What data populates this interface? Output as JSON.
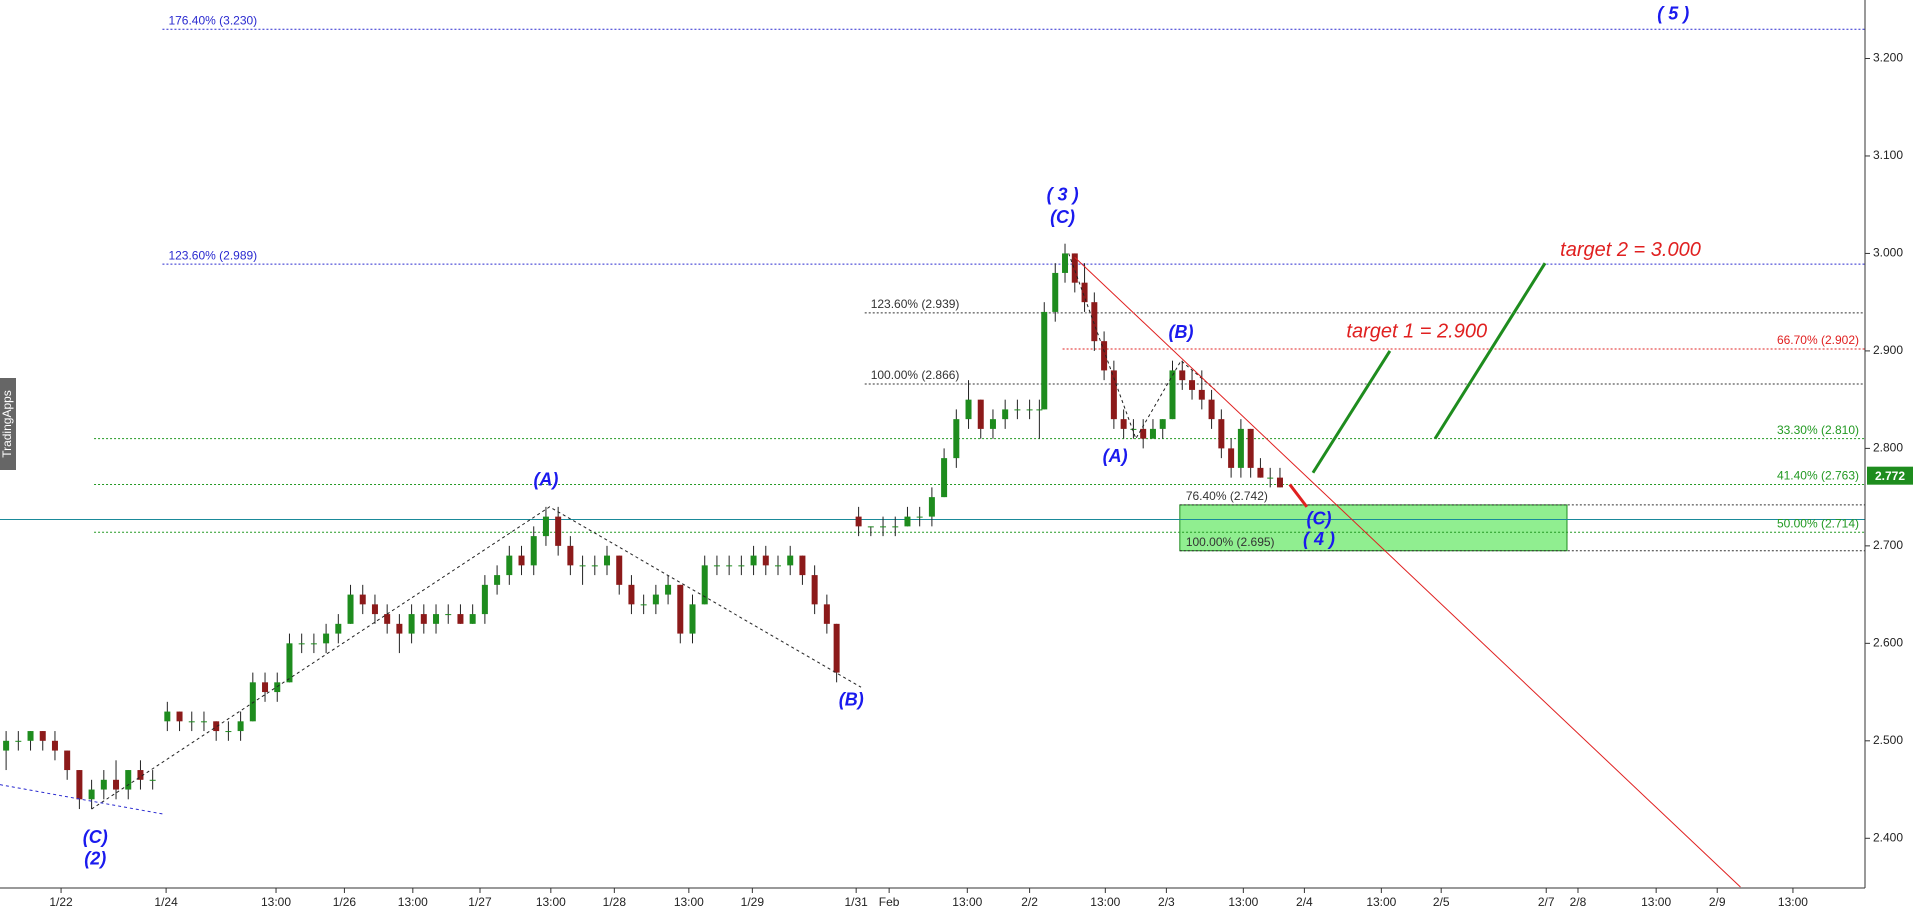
{
  "chart_data": {
    "type": "candlestick",
    "xlim": [
      0,
      152.7
    ],
    "ylim": [
      2.349,
      3.26
    ],
    "yticks": [
      {
        "value": 2.4,
        "label": "2.400"
      },
      {
        "value": 2.5,
        "label": "2.500"
      },
      {
        "value": 2.6,
        "label": "2.600"
      },
      {
        "value": 2.7,
        "label": "2.700"
      },
      {
        "value": 2.8,
        "label": "2.800"
      },
      {
        "value": 2.9,
        "label": "2.900"
      },
      {
        "value": 3.0,
        "label": "3.000"
      },
      {
        "value": 3.1,
        "label": "3.100"
      },
      {
        "value": 3.2,
        "label": "3.200"
      }
    ],
    "xticks": [
      {
        "value": 5.0,
        "label": "1/22"
      },
      {
        "value": 13.6,
        "label": "1/24"
      },
      {
        "value": 22.6,
        "label": "13:00"
      },
      {
        "value": 28.2,
        "label": "1/26"
      },
      {
        "value": 33.8,
        "label": "13:00"
      },
      {
        "value": 39.3,
        "label": "1/27"
      },
      {
        "value": 45.1,
        "label": "13:00"
      },
      {
        "value": 50.3,
        "label": "1/28"
      },
      {
        "value": 56.4,
        "label": "13:00"
      },
      {
        "value": 61.6,
        "label": "1/29"
      },
      {
        "value": 70.1,
        "label": "1/31"
      },
      {
        "value": 72.8,
        "label": "Feb"
      },
      {
        "value": 79.2,
        "label": "13:00"
      },
      {
        "value": 84.3,
        "label": "2/2"
      },
      {
        "value": 90.5,
        "label": "13:00"
      },
      {
        "value": 95.5,
        "label": "2/3"
      },
      {
        "value": 101.8,
        "label": "13:00"
      },
      {
        "value": 106.8,
        "label": "2/4"
      },
      {
        "value": 113.1,
        "label": "13:00"
      },
      {
        "value": 118.0,
        "label": "2/5"
      },
      {
        "value": 126.6,
        "label": "2/7"
      },
      {
        "value": 129.2,
        "label": "2/8"
      },
      {
        "value": 135.6,
        "label": "13:00"
      },
      {
        "value": 140.6,
        "label": "2/9"
      },
      {
        "value": 146.8,
        "label": "13:00"
      }
    ],
    "up_color": "#1e8c1e",
    "down_color": "#8c1a1a",
    "candles": {
      "x": [
        0.5,
        1.5,
        2.5,
        3.5,
        4.5,
        5.5,
        6.5,
        7.5,
        8.5,
        9.5,
        10.5,
        11.5,
        12.5,
        13.7,
        14.7,
        15.7,
        16.7,
        17.7,
        18.7,
        19.7,
        20.7,
        21.7,
        22.7,
        23.7,
        24.7,
        25.7,
        26.7,
        27.7,
        28.7,
        29.7,
        30.7,
        31.7,
        32.7,
        33.7,
        34.7,
        35.7,
        36.7,
        37.7,
        38.7,
        39.7,
        40.7,
        41.7,
        42.7,
        43.7,
        44.7,
        45.7,
        46.7,
        47.7,
        48.7,
        49.7,
        50.7,
        51.7,
        52.7,
        53.7,
        54.7,
        55.7,
        56.7,
        57.7,
        58.7,
        59.7,
        60.7,
        61.7,
        62.7,
        63.7,
        64.7,
        65.7,
        66.7,
        67.7,
        68.5,
        70.3,
        71.3,
        72.3,
        73.3,
        74.3,
        75.3,
        76.3,
        77.3,
        78.3,
        79.3,
        80.3,
        81.3,
        82.3,
        83.3,
        84.3,
        85.1,
        85.5,
        86.4,
        87.2,
        88.0,
        88.8,
        89.6,
        90.4,
        91.2,
        92.0,
        92.8,
        93.6,
        94.4,
        95.2,
        96.0,
        96.8,
        97.6,
        98.4,
        99.2,
        100.0,
        100.8,
        101.6,
        102.4,
        103.2,
        104.0,
        104.8
      ],
      "open": [
        2.49,
        2.5,
        2.5,
        2.51,
        2.5,
        2.49,
        2.47,
        2.44,
        2.45,
        2.46,
        2.45,
        2.47,
        2.46,
        2.52,
        2.53,
        2.52,
        2.52,
        2.52,
        2.51,
        2.51,
        2.52,
        2.56,
        2.55,
        2.56,
        2.6,
        2.6,
        2.6,
        2.61,
        2.62,
        2.65,
        2.64,
        2.63,
        2.62,
        2.61,
        2.63,
        2.62,
        2.63,
        2.63,
        2.62,
        2.63,
        2.66,
        2.67,
        2.69,
        2.68,
        2.71,
        2.73,
        2.7,
        2.68,
        2.68,
        2.68,
        2.69,
        2.66,
        2.64,
        2.64,
        2.65,
        2.66,
        2.61,
        2.64,
        2.68,
        2.68,
        2.68,
        2.68,
        2.69,
        2.68,
        2.68,
        2.69,
        2.67,
        2.64,
        2.62,
        2.73,
        2.72,
        2.72,
        2.72,
        2.72,
        2.73,
        2.73,
        2.75,
        2.79,
        2.83,
        2.85,
        2.82,
        2.83,
        2.84,
        2.84,
        2.84,
        2.84,
        2.94,
        2.98,
        3.0,
        2.97,
        2.95,
        2.91,
        2.88,
        2.83,
        2.82,
        2.82,
        2.81,
        2.82,
        2.83,
        2.88,
        2.87,
        2.86,
        2.85,
        2.83,
        2.8,
        2.78,
        2.82,
        2.78,
        2.77,
        2.77
      ],
      "high": [
        2.51,
        2.51,
        2.51,
        2.51,
        2.51,
        2.49,
        2.47,
        2.46,
        2.47,
        2.48,
        2.47,
        2.48,
        2.47,
        2.54,
        2.53,
        2.53,
        2.53,
        2.52,
        2.52,
        2.53,
        2.57,
        2.57,
        2.57,
        2.61,
        2.61,
        2.61,
        2.62,
        2.63,
        2.66,
        2.66,
        2.65,
        2.64,
        2.63,
        2.64,
        2.64,
        2.64,
        2.64,
        2.64,
        2.64,
        2.67,
        2.68,
        2.7,
        2.7,
        2.72,
        2.74,
        2.74,
        2.71,
        2.69,
        2.69,
        2.7,
        2.69,
        2.67,
        2.65,
        2.66,
        2.67,
        2.66,
        2.65,
        2.69,
        2.69,
        2.69,
        2.69,
        2.7,
        2.7,
        2.69,
        2.7,
        2.69,
        2.68,
        2.65,
        2.62,
        2.74,
        2.72,
        2.73,
        2.73,
        2.74,
        2.74,
        2.76,
        2.8,
        2.84,
        2.87,
        2.85,
        2.84,
        2.85,
        2.85,
        2.85,
        2.85,
        2.95,
        2.99,
        3.01,
        3.0,
        2.99,
        2.96,
        2.92,
        2.89,
        2.84,
        2.83,
        2.83,
        2.83,
        2.83,
        2.89,
        2.89,
        2.88,
        2.88,
        2.86,
        2.84,
        2.81,
        2.83,
        2.82,
        2.79,
        2.78,
        2.78
      ],
      "low": [
        2.47,
        2.49,
        2.49,
        2.49,
        2.48,
        2.46,
        2.43,
        2.43,
        2.44,
        2.44,
        2.44,
        2.45,
        2.45,
        2.51,
        2.51,
        2.51,
        2.51,
        2.5,
        2.5,
        2.5,
        2.52,
        2.54,
        2.54,
        2.56,
        2.59,
        2.59,
        2.59,
        2.6,
        2.62,
        2.63,
        2.62,
        2.61,
        2.59,
        2.6,
        2.61,
        2.61,
        2.62,
        2.62,
        2.62,
        2.62,
        2.65,
        2.66,
        2.67,
        2.67,
        2.7,
        2.69,
        2.67,
        2.66,
        2.67,
        2.67,
        2.65,
        2.63,
        2.63,
        2.63,
        2.64,
        2.6,
        2.6,
        2.64,
        2.67,
        2.67,
        2.67,
        2.67,
        2.67,
        2.67,
        2.67,
        2.66,
        2.63,
        2.61,
        2.56,
        2.71,
        2.71,
        2.71,
        2.71,
        2.72,
        2.72,
        2.72,
        2.75,
        2.78,
        2.82,
        2.81,
        2.81,
        2.82,
        2.83,
        2.83,
        2.81,
        2.84,
        2.93,
        2.97,
        2.96,
        2.94,
        2.9,
        2.87,
        2.82,
        2.81,
        2.81,
        2.8,
        2.81,
        2.81,
        2.83,
        2.86,
        2.85,
        2.84,
        2.82,
        2.79,
        2.77,
        2.77,
        2.77,
        2.77,
        2.76,
        2.76
      ],
      "close": [
        2.5,
        2.5,
        2.51,
        2.5,
        2.49,
        2.47,
        2.44,
        2.45,
        2.46,
        2.45,
        2.47,
        2.46,
        2.46,
        2.53,
        2.52,
        2.52,
        2.52,
        2.51,
        2.51,
        2.52,
        2.56,
        2.55,
        2.56,
        2.6,
        2.6,
        2.6,
        2.61,
        2.62,
        2.65,
        2.64,
        2.63,
        2.62,
        2.61,
        2.63,
        2.62,
        2.63,
        2.63,
        2.62,
        2.63,
        2.66,
        2.67,
        2.69,
        2.68,
        2.71,
        2.73,
        2.7,
        2.68,
        2.68,
        2.68,
        2.69,
        2.66,
        2.64,
        2.64,
        2.65,
        2.66,
        2.61,
        2.64,
        2.68,
        2.68,
        2.68,
        2.68,
        2.69,
        2.68,
        2.68,
        2.69,
        2.67,
        2.64,
        2.62,
        2.57,
        2.72,
        2.72,
        2.72,
        2.72,
        2.73,
        2.73,
        2.75,
        2.79,
        2.83,
        2.85,
        2.82,
        2.83,
        2.84,
        2.84,
        2.84,
        2.84,
        2.94,
        2.98,
        3.0,
        2.97,
        2.95,
        2.91,
        2.88,
        2.83,
        2.82,
        2.82,
        2.81,
        2.82,
        2.83,
        2.88,
        2.87,
        2.86,
        2.85,
        2.83,
        2.8,
        2.78,
        2.82,
        2.78,
        2.77,
        2.77,
        2.76
      ]
    },
    "fib_levels": [
      {
        "label": "176.40% (3.230)",
        "value": 3.23,
        "color": "#2a2ad0",
        "x_start": 13.3,
        "side": "left"
      },
      {
        "label": "123.60% (2.989)",
        "value": 2.989,
        "color": "#2a2ad0",
        "x_start": 13.3,
        "side": "left"
      },
      {
        "label": "123.60% (2.939)",
        "value": 2.939,
        "color": "#333333",
        "x_start": 70.8,
        "side": "left"
      },
      {
        "label": "100.00% (2.866)",
        "value": 2.866,
        "color": "#333333",
        "x_start": 70.8,
        "side": "left"
      },
      {
        "label": "66.70% (2.902)",
        "value": 2.902,
        "color": "#e02020",
        "x_start": 87.0,
        "side": "right"
      },
      {
        "label": "33.30% (2.810)",
        "value": 2.81,
        "color": "#229922",
        "x_start": 7.7,
        "side": "right"
      },
      {
        "label": "41.40% (2.763)",
        "value": 2.763,
        "color": "#229922",
        "x_start": 7.7,
        "side": "right"
      },
      {
        "label": "50.00% (2.714)",
        "value": 2.714,
        "color": "#229922",
        "x_start": 7.7,
        "side": "right"
      },
      {
        "label": "76.40% (2.742)",
        "value": 2.742,
        "color": "#333333",
        "x_start": 96.6,
        "side": "left"
      },
      {
        "label": "100.00% (2.695)",
        "value": 2.695,
        "color": "#333333",
        "x_start": 96.6,
        "side": "left"
      }
    ],
    "reference_line": {
      "value": 2.727,
      "color": "#1a8a9a"
    },
    "zone": {
      "x": [
        96.6,
        128.3
      ],
      "y": [
        2.695,
        2.742
      ],
      "color": "#90ee90"
    },
    "last_price": {
      "value": 2.772,
      "label": "2.772",
      "color": "#1e8c1e"
    },
    "trend_lines": [
      {
        "x": [
          7.5,
          45.0,
          70.5
        ],
        "y": [
          2.43,
          2.74,
          2.555
        ],
        "color": "#222222",
        "style": "dotted"
      },
      {
        "x": [
          0,
          13.3
        ],
        "y": [
          2.455,
          2.425
        ],
        "color": "#2a2ad0",
        "style": "dotted"
      },
      {
        "x": [
          87.5,
          93.0,
          96.7,
          99.5
        ],
        "y": [
          3.0,
          2.81,
          2.89,
          2.86
        ],
        "color": "#222222",
        "style": "dotted"
      },
      {
        "x": [
          88.0,
          142.5
        ],
        "y": [
          2.996,
          2.35
        ],
        "color": "#e02020",
        "style": "solid"
      },
      {
        "x": [
          107.5,
          113.8
        ],
        "y": [
          2.775,
          2.9
        ],
        "color": "#1e8c1e",
        "style": "thick"
      },
      {
        "x": [
          117.5,
          126.5
        ],
        "y": [
          2.81,
          2.99
        ],
        "color": "#1e8c1e",
        "style": "thick"
      },
      {
        "x": [
          105.6,
          107.0
        ],
        "y": [
          2.763,
          2.74
        ],
        "color": "#e02020",
        "style": "thick"
      }
    ],
    "annotations": [
      {
        "text": "( 5 )",
        "x": 137.0,
        "y": 3.245,
        "color": "#1a1aee"
      },
      {
        "text": "( 3 )",
        "x": 87.0,
        "y": 3.059,
        "color": "#1a1aee"
      },
      {
        "text": "(C)",
        "x": 87.0,
        "y": 3.036,
        "color": "#1a1aee"
      },
      {
        "text": "(B)",
        "x": 96.7,
        "y": 2.918,
        "color": "#1a1aee"
      },
      {
        "text": "(A)",
        "x": 91.3,
        "y": 2.791,
        "color": "#1a1aee"
      },
      {
        "text": "(C)",
        "x": 108.0,
        "y": 2.727,
        "color": "#1a1aee"
      },
      {
        "text": "( 4 )",
        "x": 108.0,
        "y": 2.706,
        "color": "#1a1aee"
      },
      {
        "text": "(A)",
        "x": 44.7,
        "y": 2.767,
        "color": "#1a1aee"
      },
      {
        "text": "(B)",
        "x": 69.7,
        "y": 2.541,
        "color": "#1a1aee"
      },
      {
        "text": "(C)",
        "x": 7.8,
        "y": 2.4,
        "color": "#1a1aee"
      },
      {
        "text": "(2)",
        "x": 7.8,
        "y": 2.378,
        "color": "#1a1aee"
      },
      {
        "text": "target 1 = 2.900",
        "x": 116.0,
        "y": 2.919,
        "color": "#e02020"
      },
      {
        "text": "target 2 = 3.000",
        "x": 133.5,
        "y": 3.003,
        "color": "#e02020"
      }
    ],
    "watermark": "TradingApps"
  }
}
